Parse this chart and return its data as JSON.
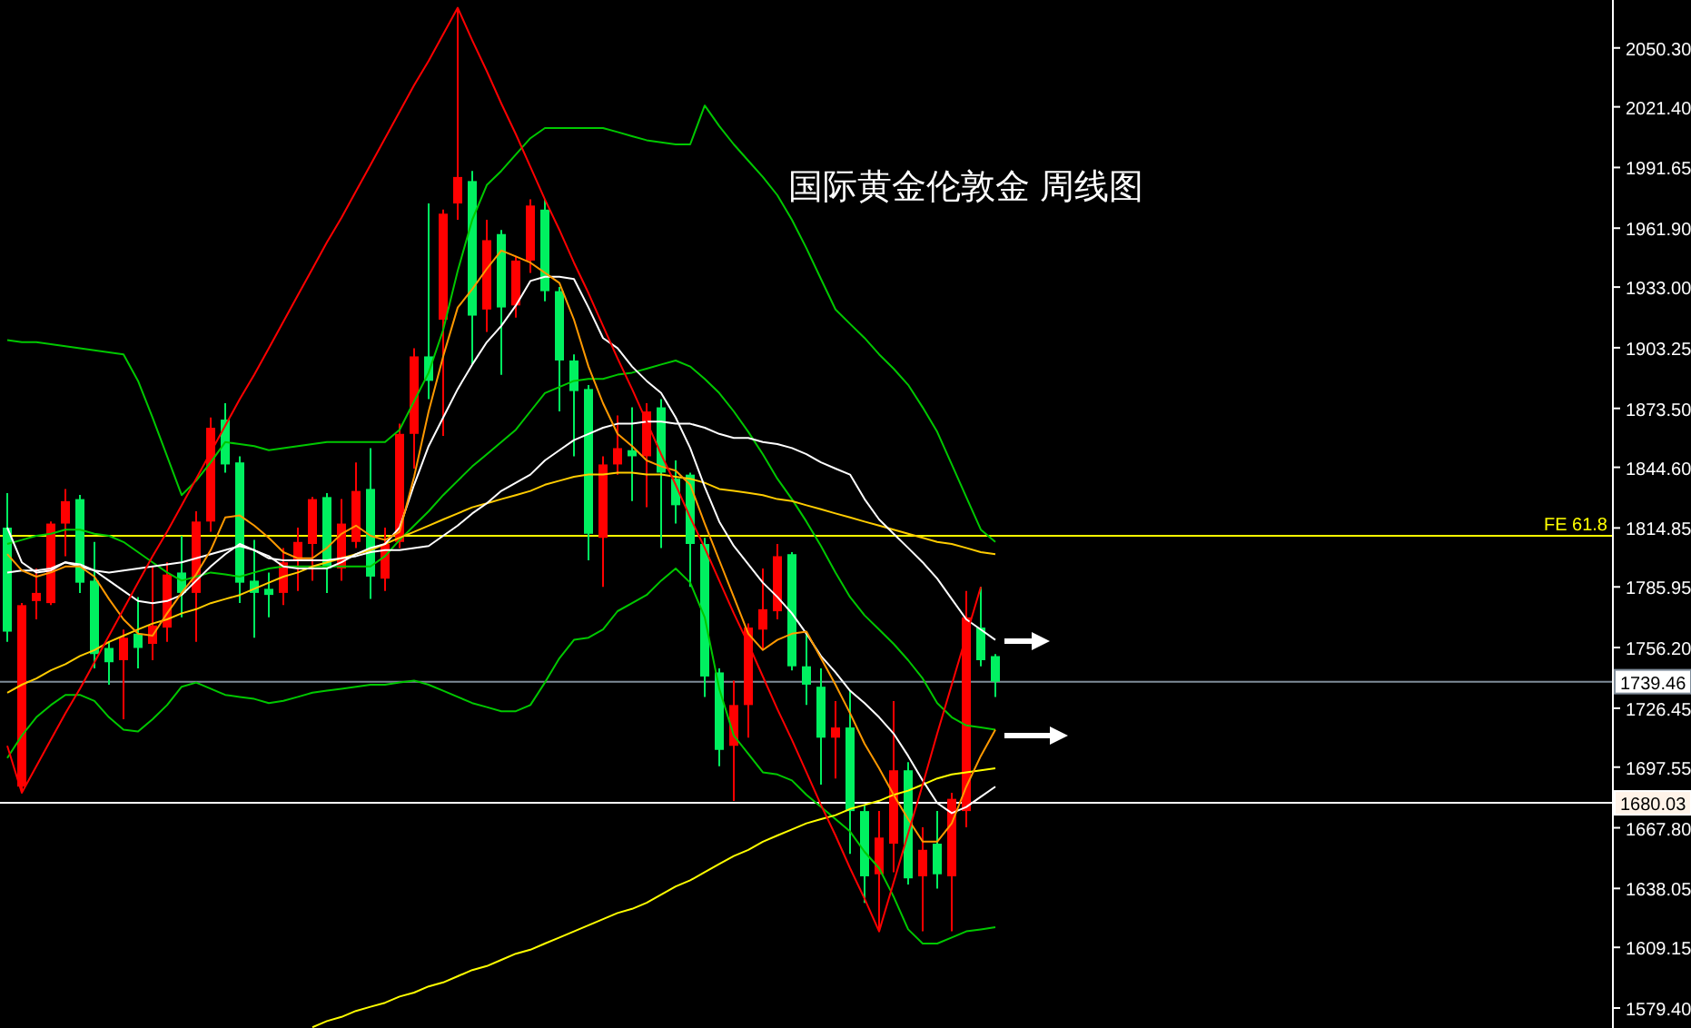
{
  "chart_data": {
    "type": "candlestick",
    "title": "国际黄金伦敦金 周线图",
    "categories": [
      null,
      null,
      null,
      null,
      null,
      null,
      null,
      null,
      null,
      null,
      null,
      null,
      null,
      null,
      null,
      null,
      null,
      null,
      null,
      null,
      null,
      null,
      null,
      null,
      null,
      null,
      null,
      null,
      null,
      null,
      null,
      null,
      null,
      null,
      null,
      null,
      null,
      null,
      null,
      null,
      null,
      null,
      null,
      null,
      null,
      null,
      null,
      null,
      null,
      null,
      null,
      null,
      null,
      null,
      null,
      null,
      null,
      null,
      null,
      null,
      null,
      null,
      null,
      null,
      null,
      null,
      null,
      null,
      null,
      null,
      null,
      null,
      null,
      null,
      null,
      null,
      null,
      null,
      null,
      null,
      null,
      null,
      null,
      null,
      null,
      null,
      null,
      null,
      null,
      null,
      null,
      null,
      null,
      null,
      null,
      null,
      null,
      null,
      null,
      null,
      null,
      null,
      null,
      null,
      null,
      null,
      null,
      null,
      null,
      null,
      null
    ],
    "ohlc": [
      [
        1815,
        1832,
        1759,
        1764
      ],
      [
        1688,
        1778,
        1685,
        1777
      ],
      [
        1779,
        1795,
        1770,
        1783
      ],
      [
        1778,
        1818,
        1777,
        1817
      ],
      [
        1817,
        1834,
        1801,
        1828
      ],
      [
        1829,
        1831,
        1783,
        1788
      ],
      [
        1789,
        1808,
        1746,
        1753
      ],
      [
        1756,
        1759,
        1738,
        1749
      ],
      [
        1750,
        1765,
        1721,
        1761
      ],
      [
        1763,
        1781,
        1746,
        1756
      ],
      [
        1758,
        1796,
        1750,
        1767
      ],
      [
        1766,
        1798,
        1759,
        1792
      ],
      [
        1793,
        1811,
        1771,
        1783
      ],
      [
        1783,
        1823,
        1759,
        1818
      ],
      [
        1818,
        1869,
        1813,
        1864
      ],
      [
        1868,
        1876,
        1842,
        1846
      ],
      [
        1847,
        1850,
        1778,
        1788
      ],
      [
        1789,
        1809,
        1761,
        1783
      ],
      [
        1785,
        1793,
        1771,
        1782
      ],
      [
        1783,
        1805,
        1777,
        1798
      ],
      [
        1799,
        1815,
        1784,
        1808
      ],
      [
        1807,
        1830,
        1789,
        1829
      ],
      [
        1830,
        1832,
        1783,
        1795
      ],
      [
        1795,
        1829,
        1789,
        1817
      ],
      [
        1808,
        1847,
        1805,
        1833
      ],
      [
        1834,
        1854,
        1780,
        1791
      ],
      [
        1790,
        1815,
        1784,
        1807
      ],
      [
        1808,
        1866,
        1805,
        1861
      ],
      [
        1861,
        1903,
        1844,
        1899
      ],
      [
        1899,
        1974,
        1878,
        1887
      ],
      [
        1917,
        1971,
        1860,
        1969
      ],
      [
        1974,
        2070,
        1966,
        1987
      ],
      [
        1985,
        1990,
        1895,
        1919
      ],
      [
        1922,
        1966,
        1911,
        1956
      ],
      [
        1959,
        1961,
        1890,
        1923
      ],
      [
        1924,
        1948,
        1918,
        1946
      ],
      [
        1946,
        1976,
        1940,
        1973
      ],
      [
        1971,
        1976,
        1926,
        1931
      ],
      [
        1931,
        1933,
        1872,
        1897
      ],
      [
        1897,
        1900,
        1850,
        1882
      ],
      [
        1883,
        1885,
        1799,
        1812
      ],
      [
        1810,
        1850,
        1786,
        1846
      ],
      [
        1846,
        1870,
        1841,
        1854
      ],
      [
        1853,
        1874,
        1828,
        1850
      ],
      [
        1850,
        1876,
        1825,
        1872
      ],
      [
        1874,
        1878,
        1805,
        1842
      ],
      [
        1839,
        1848,
        1817,
        1826
      ],
      [
        1841,
        1842,
        1786,
        1807
      ],
      [
        1807,
        1810,
        1732,
        1742
      ],
      [
        1744,
        1746,
        1698,
        1706
      ],
      [
        1708,
        1740,
        1681,
        1728
      ],
      [
        1728,
        1768,
        1712,
        1766
      ],
      [
        1765,
        1795,
        1755,
        1775
      ],
      [
        1774,
        1807,
        1770,
        1801
      ],
      [
        1802,
        1803,
        1745,
        1747
      ],
      [
        1747,
        1764,
        1728,
        1738
      ],
      [
        1737,
        1746,
        1689,
        1712
      ],
      [
        1712,
        1730,
        1692,
        1717
      ],
      [
        1717,
        1735,
        1655,
        1676
      ],
      [
        1676,
        1679,
        1631,
        1644
      ],
      [
        1645,
        1676,
        1617,
        1663
      ],
      [
        1660,
        1730,
        1646,
        1696
      ],
      [
        1696,
        1700,
        1640,
        1643
      ],
      [
        1644,
        1668,
        1617,
        1657
      ],
      [
        1660,
        1676,
        1638,
        1645
      ],
      [
        1644,
        1685,
        1617,
        1682
      ],
      [
        1676,
        1784,
        1668,
        1771
      ],
      [
        1766,
        1786,
        1747,
        1750
      ],
      [
        1752,
        1753,
        1732,
        1739.46
      ],
      null,
      null,
      null,
      null,
      null,
      null,
      null,
      null,
      null,
      null,
      null,
      null,
      null,
      null,
      null,
      null,
      null,
      null,
      null,
      null,
      null,
      null,
      null,
      null,
      null,
      null,
      null,
      null,
      null,
      null,
      null,
      null,
      null,
      null,
      null,
      null,
      null,
      null,
      null,
      null,
      null,
      null
    ],
    "colors": [
      "#00f060",
      "#ff0000",
      "#ff0000",
      "#ff0000",
      "#ff0000",
      "#00f060",
      "#00f060",
      "#00f060",
      "#ff0000",
      "#00f060",
      "#ff0000",
      "#ff0000",
      "#00f060",
      "#ff0000",
      "#ff0000",
      "#00f060",
      "#00f060",
      "#00f060",
      "#00f060",
      "#ff0000",
      "#ff0000",
      "#ff0000",
      "#00f060",
      "#ff0000",
      "#ff0000",
      "#00f060",
      "#ff0000",
      "#ff0000",
      "#ff0000",
      "#00f060",
      "#ff0000",
      "#ff0000",
      "#00f060",
      "#ff0000",
      "#00f060",
      "#ff0000",
      "#ff0000",
      "#00f060",
      "#00f060",
      "#00f060",
      "#00f060",
      "#ff0000",
      "#ff0000",
      "#00f060",
      "#ff0000",
      "#00f060",
      "#00f060",
      "#00f060",
      "#00f060",
      "#00f060",
      "#ff0000",
      "#ff0000",
      "#ff0000",
      "#ff0000",
      "#00f060",
      "#00f060",
      "#00f060",
      "#ff0000",
      "#00f060",
      "#00f060",
      "#ff0000",
      "#ff0000",
      "#00f060",
      "#ff0000",
      "#00f060",
      "#ff0000",
      "#ff0000",
      "#00f060",
      "#00f060",
      null,
      null,
      null,
      null,
      null,
      null,
      null,
      null,
      null,
      null,
      null,
      null,
      null,
      null,
      null,
      null,
      null,
      null,
      null,
      null,
      null,
      null,
      null,
      null,
      null,
      null,
      null,
      null,
      null,
      null,
      null,
      null,
      null,
      null,
      null,
      null,
      null,
      null,
      null,
      null,
      null,
      null
    ],
    "series": [
      {
        "type": "line",
        "color": "#00c800",
        "values": [
          1907,
          1906,
          1906,
          1905,
          1904,
          1903,
          1902,
          1901,
          1900,
          1887,
          1869,
          1850,
          1831,
          1838,
          1847,
          1857,
          1856,
          1855,
          1853,
          1854,
          1855,
          1856,
          1857,
          1857,
          1857,
          1857,
          1857,
          1863,
          1877,
          1891,
          1912,
          1941,
          1966,
          1983,
          1990,
          1998,
          2006,
          2011,
          2011,
          2011,
          2011,
          2011,
          2009,
          2007,
          2005,
          2004,
          2003,
          2003,
          2022,
          2012,
          2003,
          1995,
          1987,
          1978,
          1966,
          1952,
          1937,
          1922,
          1915,
          1908,
          1900,
          1893,
          1885,
          1874,
          1862,
          1846,
          1830,
          1814,
          1808,
          null,
          null,
          null,
          null,
          null,
          null,
          null,
          null,
          null,
          null,
          null,
          null,
          null,
          null,
          null,
          null,
          null,
          null,
          null,
          null,
          null,
          null,
          null,
          null,
          null,
          null,
          null,
          null,
          null,
          null,
          null,
          null,
          null,
          null,
          null,
          null,
          null,
          null,
          null,
          null,
          null,
          null
        ]
      },
      {
        "type": "line",
        "color": "#00c800",
        "values": [
          1807,
          1809,
          1811,
          1812,
          1814,
          1814,
          1812,
          1811,
          1808,
          1803,
          1798,
          1793,
          1789,
          1791,
          1793,
          1792,
          1791,
          1793,
          1795,
          1796,
          1796,
          1796,
          1796,
          1796,
          1796,
          1796,
          1801,
          1809,
          1816,
          1823,
          1831,
          1838,
          1845,
          1851,
          1857,
          1863,
          1872,
          1881,
          1884,
          1887,
          1888,
          1888,
          1890,
          1891,
          1893,
          1895,
          1897,
          1894,
          1888,
          1881,
          1872,
          1862,
          1851,
          1839,
          1829,
          1818,
          1806,
          1793,
          1781,
          1772,
          1765,
          1758,
          1750,
          1741,
          1729,
          1722,
          1718,
          1717,
          1716,
          null,
          null,
          null,
          null,
          null,
          null,
          null,
          null,
          null,
          null,
          null,
          null,
          null,
          null,
          null,
          null,
          null,
          null,
          null,
          null,
          null,
          null,
          null,
          null,
          null,
          null,
          null,
          null,
          null,
          null,
          null,
          null,
          null,
          null,
          null,
          null,
          null,
          null,
          null,
          null,
          null,
          null
        ]
      },
      {
        "type": "line",
        "color": "#00c800",
        "values": [
          1702,
          1713,
          1722,
          1728,
          1733,
          1733,
          1730,
          1722,
          1716,
          1715,
          1721,
          1728,
          1737,
          1739,
          1736,
          1733,
          1732,
          1731,
          1729,
          1730,
          1732,
          1734,
          1735,
          1736,
          1737,
          1738,
          1738,
          1739,
          1740,
          1738,
          1735,
          1732,
          1729,
          1727,
          1725,
          1725,
          1728,
          1739,
          1751,
          1760,
          1761,
          1765,
          1774,
          1778,
          1782,
          1789,
          1795,
          1788,
          1771,
          1736,
          1713,
          1704,
          1695,
          1694,
          1691,
          1684,
          1678,
          1672,
          1666,
          1656,
          1648,
          1634,
          1618,
          1611,
          1611,
          1614,
          1617,
          1618,
          1619,
          null,
          null,
          null,
          null,
          null,
          null,
          null,
          null,
          null,
          null,
          null,
          null,
          null,
          null,
          null,
          null,
          null,
          null,
          null,
          null,
          null,
          null,
          null,
          null,
          null,
          null,
          null,
          null,
          null,
          null,
          null,
          null,
          null,
          null,
          null,
          null,
          null,
          null,
          null,
          null,
          null,
          null
        ]
      },
      {
        "type": "line",
        "color": "#ffcc00",
        "values": [
          1734,
          1738,
          1741,
          1745,
          1748,
          1752,
          1755,
          1759,
          1762,
          1765,
          1768,
          1770,
          1773,
          1775,
          1778,
          1780,
          1782,
          1785,
          1788,
          1791,
          1793,
          1796,
          1798,
          1800,
          1802,
          1804,
          1807,
          1810,
          1813,
          1816,
          1819,
          1822,
          1825,
          1827,
          1829,
          1831,
          1833,
          1836,
          1838,
          1840,
          1841,
          1841,
          1842,
          1842,
          1841,
          1841,
          1840,
          1839,
          1837,
          1834,
          1833,
          1832,
          1831,
          1829,
          1828,
          1826,
          1824,
          1822,
          1820,
          1818,
          1816,
          1814,
          1812,
          1810,
          1808,
          1807,
          1805,
          1803,
          1802,
          null,
          null,
          null,
          null,
          null,
          null,
          null,
          null,
          null,
          null,
          null,
          null,
          null,
          null,
          null,
          null,
          null,
          null,
          null,
          null,
          null,
          null,
          null,
          null,
          null,
          null,
          null,
          null,
          null,
          null,
          null,
          null,
          null,
          null,
          null,
          null,
          null,
          null,
          null,
          null,
          null,
          null
        ]
      },
      {
        "type": "line",
        "color": "#ffff00",
        "values": [
          null,
          null,
          null,
          null,
          null,
          null,
          null,
          null,
          null,
          null,
          null,
          null,
          null,
          null,
          null,
          null,
          null,
          null,
          null,
          null,
          null,
          1570,
          1573,
          1575,
          1578,
          1580,
          1582,
          1585,
          1587,
          1590,
          1592,
          1595,
          1598,
          1600,
          1603,
          1606,
          1608,
          1611,
          1614,
          1617,
          1620,
          1623,
          1626,
          1628,
          1631,
          1635,
          1639,
          1642,
          1646,
          1650,
          1654,
          1657,
          1661,
          1664,
          1667,
          1670,
          1672,
          1674,
          1677,
          1679,
          1681,
          1684,
          1686,
          1689,
          1692,
          1694,
          1695,
          1696,
          1697,
          null,
          null,
          null,
          null,
          null,
          null,
          null,
          null,
          null,
          null,
          null,
          null,
          null,
          null,
          null,
          null,
          null,
          null,
          null,
          null,
          null,
          null,
          null,
          null,
          null,
          null,
          null,
          null,
          null,
          null,
          null,
          null,
          null,
          null,
          null,
          null,
          null,
          null,
          null,
          null,
          null,
          null
        ]
      },
      {
        "type": "line",
        "color": "#ffffff",
        "values": [
          1793,
          1794,
          1794,
          1795,
          1798,
          1796,
          1794,
          1793,
          1794,
          1795,
          1796,
          1797,
          1798,
          1800,
          1802,
          1804,
          1806,
          1804,
          1800,
          1799,
          1799,
          1799,
          1799,
          1800,
          1801,
          1803,
          1804,
          1804,
          1805,
          1806,
          1811,
          1816,
          1822,
          1827,
          1833,
          1837,
          1841,
          1848,
          1853,
          1858,
          1861,
          1864,
          1866,
          1866,
          1867,
          1867,
          1866,
          1866,
          1864,
          1861,
          1859,
          1859,
          1857,
          1856,
          1854,
          1851,
          1847,
          1844,
          1841,
          1829,
          1819,
          1812,
          1805,
          1798,
          1790,
          1780,
          1770,
          1765,
          1760,
          null,
          null,
          null,
          null,
          null,
          null,
          null,
          null,
          null,
          null,
          null,
          null,
          null,
          null,
          null,
          null,
          null,
          null,
          null,
          null,
          null,
          null,
          null,
          null,
          null,
          null,
          null,
          null,
          null,
          null,
          null,
          null,
          null,
          null,
          null,
          null,
          null,
          null,
          null,
          null,
          null,
          null
        ]
      },
      {
        "type": "line",
        "color": "#ffffff",
        "values": [
          1815,
          1798,
          1793,
          1794,
          1798,
          1797,
          1794,
          1789,
          1784,
          1779,
          1778,
          1779,
          1782,
          1789,
          1796,
          1802,
          1807,
          1804,
          1801,
          1796,
          1795,
          1795,
          1795,
          1798,
          1802,
          1805,
          1807,
          1815,
          1836,
          1855,
          1869,
          1883,
          1895,
          1906,
          1914,
          1924,
          1936,
          1938,
          1938,
          1937,
          1923,
          1908,
          1903,
          1894,
          1887,
          1881,
          1869,
          1854,
          1835,
          1818,
          1806,
          1797,
          1788,
          1781,
          1773,
          1763,
          1752,
          1744,
          1735,
          1729,
          1722,
          1714,
          1703,
          1691,
          1680,
          1675,
          1678,
          1683,
          1688,
          null,
          null,
          null,
          null,
          null,
          null,
          null,
          null,
          null,
          null,
          null,
          null,
          null,
          null,
          null,
          null,
          null,
          null,
          null,
          null,
          null,
          null,
          null,
          null,
          null,
          null,
          null,
          null,
          null,
          null,
          null,
          null,
          null,
          null,
          null,
          null,
          null,
          null,
          null,
          null,
          null,
          null
        ]
      },
      {
        "type": "line",
        "color": "#ff9900",
        "values": [
          1802,
          1794,
          1791,
          1793,
          1796,
          1796,
          1791,
          1780,
          1770,
          1763,
          1762,
          1773,
          1783,
          1792,
          1804,
          1820,
          1821,
          1816,
          1810,
          1803,
          1800,
          1800,
          1805,
          1812,
          1816,
          1811,
          1809,
          1813,
          1840,
          1872,
          1899,
          1923,
          1932,
          1942,
          1951,
          1948,
          1945,
          1940,
          1935,
          1917,
          1894,
          1876,
          1861,
          1855,
          1848,
          1845,
          1843,
          1836,
          1817,
          1799,
          1781,
          1763,
          1755,
          1760,
          1763,
          1764,
          1751,
          1738,
          1724,
          1709,
          1697,
          1684,
          1672,
          1661,
          1661,
          1670,
          1688,
          1703,
          1716,
          null,
          null,
          null,
          null,
          null,
          null,
          null,
          null,
          null,
          null,
          null,
          null,
          null,
          null,
          null,
          null,
          null,
          null,
          null,
          null,
          null,
          null,
          null,
          null,
          null,
          null,
          null,
          null,
          null,
          null,
          null,
          null,
          null,
          null,
          null,
          null,
          null,
          null,
          null,
          null,
          null,
          null
        ]
      },
      {
        "type": "line",
        "color": "#ff0000",
        "values": [
          1708,
          1685,
          1698,
          1711,
          1724,
          1736,
          1749,
          1762,
          1775,
          1788,
          1801,
          1813,
          1826,
          1839,
          1852,
          1865,
          1878,
          1890,
          1903,
          1916,
          1929,
          1942,
          1955,
          1967,
          1980,
          1993,
          2006,
          2019,
          2032,
          2044,
          2057,
          2070,
          2054,
          2039,
          2023,
          2008,
          1992,
          1976,
          1961,
          1945,
          1930,
          1914,
          1898,
          1883,
          1867,
          1851,
          1836,
          1820,
          1805,
          1789,
          1773,
          1758,
          1742,
          1726,
          1711,
          1695,
          1679,
          1664,
          1648,
          1633,
          1617,
          1641,
          1665,
          1689,
          1714,
          1738,
          1762,
          1786,
          null,
          null,
          null,
          null,
          null,
          null,
          null,
          null,
          null,
          null,
          null,
          null,
          null,
          null,
          null,
          null,
          null,
          null,
          null,
          null,
          null,
          null,
          null,
          null,
          null,
          null,
          null,
          null,
          null,
          null,
          null,
          null,
          null,
          null,
          null,
          null,
          null,
          null,
          null,
          null,
          null,
          null,
          null
        ]
      }
    ],
    "ylim": [
      1569.6,
      2073.8
    ],
    "yticks": [
      {
        "value": 2050.3,
        "label": "2050.30"
      },
      {
        "value": 2021.4,
        "label": "2021.40"
      },
      {
        "value": 1991.65,
        "label": "1991.65"
      },
      {
        "value": 1961.9,
        "label": "1961.90"
      },
      {
        "value": 1933,
        "label": "1933.00"
      },
      {
        "value": 1903.25,
        "label": "1903.25"
      },
      {
        "value": 1873.5,
        "label": "1873.50"
      },
      {
        "value": 1844.6,
        "label": "1844.60"
      },
      {
        "value": 1814.85,
        "label": "1814.85"
      },
      {
        "value": 1785.95,
        "label": "1785.95"
      },
      {
        "value": 1756.2,
        "label": "1756.20"
      },
      {
        "value": 1726.45,
        "label": "1726.45"
      },
      {
        "value": 1697.55,
        "label": "1697.55"
      },
      {
        "value": 1667.8,
        "label": "1667.80"
      },
      {
        "value": 1638.05,
        "label": "1638.05"
      },
      {
        "value": 1609.15,
        "label": "1609.15"
      },
      {
        "value": 1579.4,
        "label": "1579.40"
      }
    ],
    "ref_lines": [
      {
        "axis": "y",
        "value": 1811,
        "label": "FE 61.8",
        "color": "#ffff00"
      },
      {
        "axis": "y",
        "value": 1739.46,
        "label": "1739.46",
        "color": "#7f8c99"
      },
      {
        "axis": "y",
        "value": 1680.03,
        "label": "1680.03",
        "color": "#ffffff"
      }
    ],
    "tick_labels": "y"
  }
}
